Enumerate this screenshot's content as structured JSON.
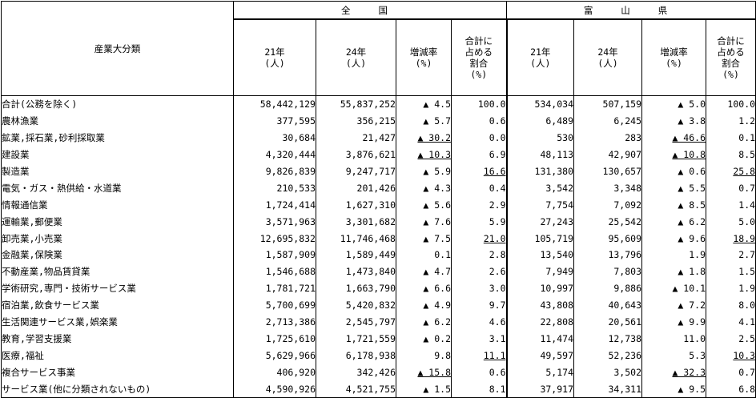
{
  "header": {
    "category_label": "産業大分類",
    "group_all": "全 国",
    "group_toyama": "富 山 県",
    "col_y21": [
      "21年",
      "(人)"
    ],
    "col_y24": [
      "24年",
      "(人)"
    ],
    "col_rate": [
      "増減率",
      "(%)"
    ],
    "col_share": [
      "合計に",
      "占める",
      "割合",
      "(%)"
    ]
  },
  "rows": [
    {
      "name": "合計(公務を除く)",
      "total": true,
      "n21": "58,442,129",
      "n24": "55,837,252",
      "nr": "▲ 4.5",
      "nru": false,
      "ns": "100.0",
      "nsu": false,
      "t21": "534,034",
      "t24": "507,159",
      "tr": "▲ 5.0",
      "tru": false,
      "ts": "100.0",
      "tsu": false
    },
    {
      "name": "農林漁業",
      "n21": "377,595",
      "n24": "356,215",
      "nr": "▲ 5.7",
      "nru": false,
      "ns": "0.6",
      "nsu": false,
      "t21": "6,489",
      "t24": "6,245",
      "tr": "▲ 3.8",
      "tru": false,
      "ts": "1.2",
      "tsu": false
    },
    {
      "name": "鉱業,採石業,砂利採取業",
      "n21": "30,684",
      "n24": "21,427",
      "nr": "▲ 30.2",
      "nru": true,
      "ns": "0.0",
      "nsu": false,
      "t21": "530",
      "t24": "283",
      "tr": "▲ 46.6",
      "tru": true,
      "ts": "0.1",
      "tsu": false
    },
    {
      "name": "建設業",
      "n21": "4,320,444",
      "n24": "3,876,621",
      "nr": "▲ 10.3",
      "nru": true,
      "ns": "6.9",
      "nsu": false,
      "t21": "48,113",
      "t24": "42,907",
      "tr": "▲ 10.8",
      "tru": true,
      "ts": "8.5",
      "tsu": false
    },
    {
      "name": "製造業",
      "n21": "9,826,839",
      "n24": "9,247,717",
      "nr": "▲ 5.9",
      "nru": false,
      "ns": "16.6",
      "nsu": true,
      "t21": "131,380",
      "t24": "130,657",
      "tr": "▲ 0.6",
      "tru": false,
      "ts": "25.8",
      "tsu": true
    },
    {
      "name": "電気・ガス・熱供給・水道業",
      "n21": "210,533",
      "n24": "201,426",
      "nr": "▲ 4.3",
      "nru": false,
      "ns": "0.4",
      "nsu": false,
      "t21": "3,542",
      "t24": "3,348",
      "tr": "▲ 5.5",
      "tru": false,
      "ts": "0.7",
      "tsu": false
    },
    {
      "name": "情報通信業",
      "n21": "1,724,414",
      "n24": "1,627,310",
      "nr": "▲ 5.6",
      "nru": false,
      "ns": "2.9",
      "nsu": false,
      "t21": "7,754",
      "t24": "7,092",
      "tr": "▲ 8.5",
      "tru": false,
      "ts": "1.4",
      "tsu": false
    },
    {
      "name": "運輸業,郵便業",
      "n21": "3,571,963",
      "n24": "3,301,682",
      "nr": "▲ 7.6",
      "nru": false,
      "ns": "5.9",
      "nsu": false,
      "t21": "27,243",
      "t24": "25,542",
      "tr": "▲ 6.2",
      "tru": false,
      "ts": "5.0",
      "tsu": false
    },
    {
      "name": "卸売業,小売業",
      "n21": "12,695,832",
      "n24": "11,746,468",
      "nr": "▲ 7.5",
      "nru": false,
      "ns": "21.0",
      "nsu": true,
      "t21": "105,719",
      "t24": "95,609",
      "tr": "▲ 9.6",
      "tru": false,
      "ts": "18.9",
      "tsu": true
    },
    {
      "name": "金融業,保険業",
      "n21": "1,587,909",
      "n24": "1,589,449",
      "nr": "0.1",
      "nru": false,
      "ns": "2.8",
      "nsu": false,
      "t21": "13,540",
      "t24": "13,796",
      "tr": "1.9",
      "tru": false,
      "ts": "2.7",
      "tsu": false
    },
    {
      "name": "不動産業,物品賃貸業",
      "n21": "1,546,688",
      "n24": "1,473,840",
      "nr": "▲ 4.7",
      "nru": false,
      "ns": "2.6",
      "nsu": false,
      "t21": "7,949",
      "t24": "7,803",
      "tr": "▲ 1.8",
      "tru": false,
      "ts": "1.5",
      "tsu": false
    },
    {
      "name": "学術研究,専門・技術サービス業",
      "n21": "1,781,721",
      "n24": "1,663,790",
      "nr": "▲ 6.6",
      "nru": false,
      "ns": "3.0",
      "nsu": false,
      "t21": "10,997",
      "t24": "9,886",
      "tr": "▲ 10.1",
      "tru": false,
      "ts": "1.9",
      "tsu": false
    },
    {
      "name": "宿泊業,飲食サービス業",
      "n21": "5,700,699",
      "n24": "5,420,832",
      "nr": "▲ 4.9",
      "nru": false,
      "ns": "9.7",
      "nsu": false,
      "t21": "43,808",
      "t24": "40,643",
      "tr": "▲ 7.2",
      "tru": false,
      "ts": "8.0",
      "tsu": false
    },
    {
      "name": "生活関連サービス業,娯楽業",
      "n21": "2,713,386",
      "n24": "2,545,797",
      "nr": "▲ 6.2",
      "nru": false,
      "ns": "4.6",
      "nsu": false,
      "t21": "22,808",
      "t24": "20,561",
      "tr": "▲ 9.9",
      "tru": false,
      "ts": "4.1",
      "tsu": false
    },
    {
      "name": "教育,学習支援業",
      "n21": "1,725,610",
      "n24": "1,721,559",
      "nr": "▲ 0.2",
      "nru": false,
      "ns": "3.1",
      "nsu": false,
      "t21": "11,474",
      "t24": "12,738",
      "tr": "11.0",
      "tru": false,
      "ts": "2.5",
      "tsu": false
    },
    {
      "name": "医療,福祉",
      "n21": "5,629,966",
      "n24": "6,178,938",
      "nr": "9.8",
      "nru": false,
      "ns": "11.1",
      "nsu": true,
      "t21": "49,597",
      "t24": "52,236",
      "tr": "5.3",
      "tru": false,
      "ts": "10.3",
      "tsu": true
    },
    {
      "name": "複合サービス事業",
      "n21": "406,920",
      "n24": "342,426",
      "nr": "▲ 15.8",
      "nru": true,
      "ns": "0.6",
      "nsu": false,
      "t21": "5,174",
      "t24": "3,502",
      "tr": "▲ 32.3",
      "tru": true,
      "ts": "0.7",
      "tsu": false
    },
    {
      "name": "サービス業(他に分類されないもの)",
      "total": true,
      "n21": "4,590,926",
      "n24": "4,521,755",
      "nr": "▲ 1.5",
      "nru": false,
      "ns": "8.1",
      "nsu": false,
      "t21": "37,917",
      "t24": "34,311",
      "tr": "▲ 9.5",
      "tru": false,
      "ts": "6.8",
      "tsu": false
    }
  ]
}
